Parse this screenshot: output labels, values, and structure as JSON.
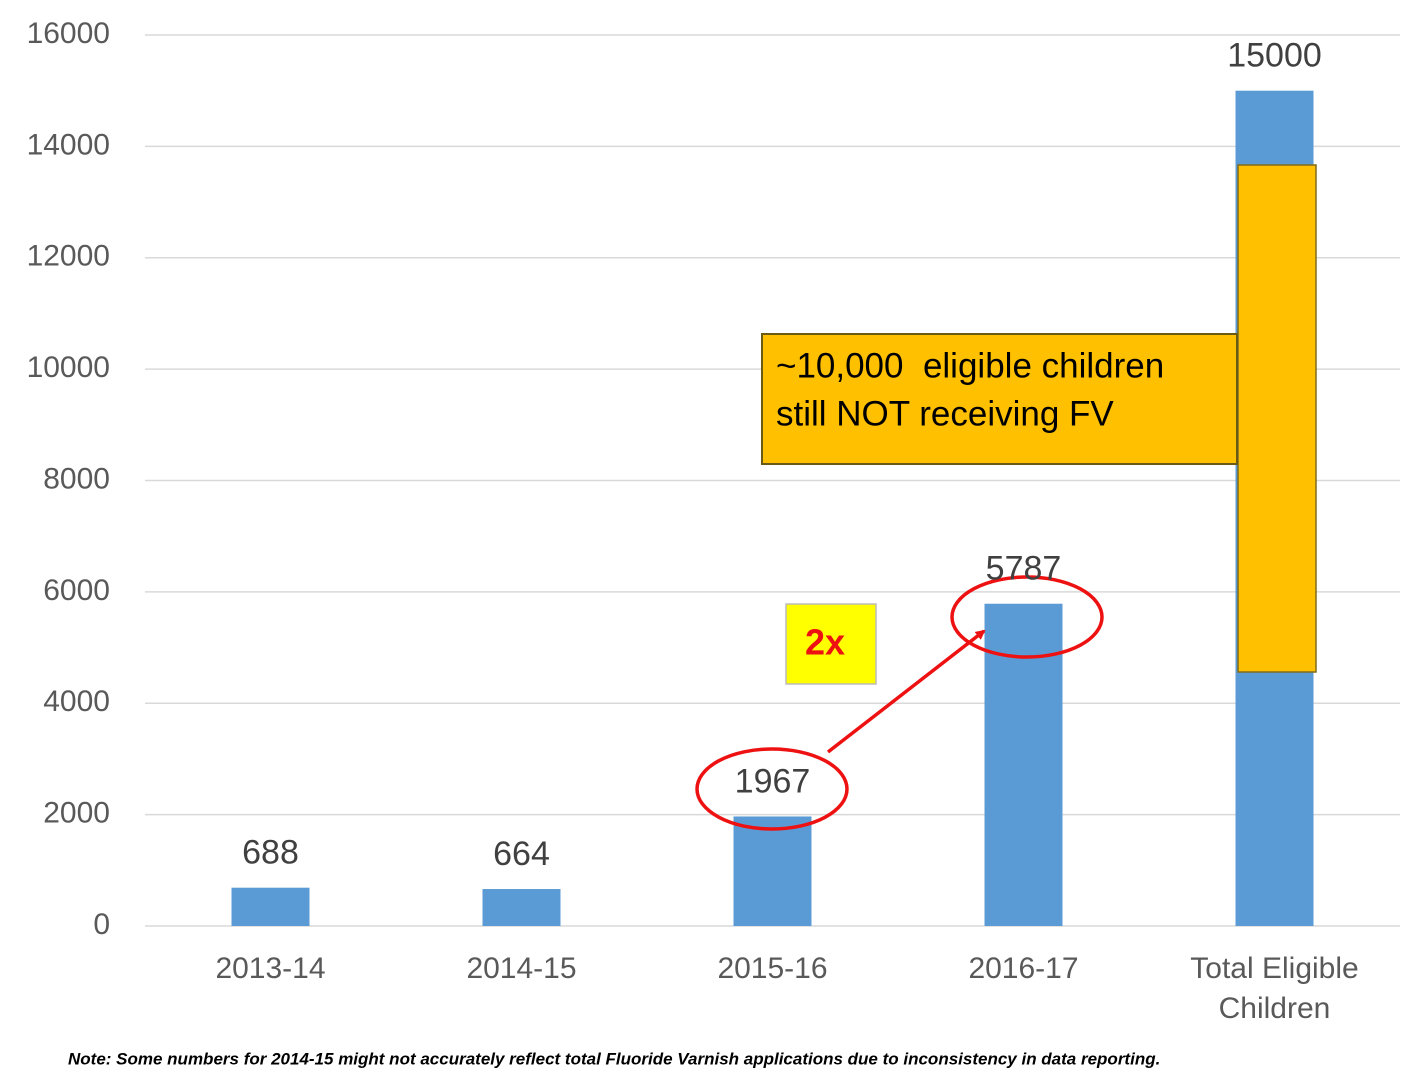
{
  "chart_data": {
    "type": "bar",
    "categories": [
      "2013-14",
      "2014-15",
      "2015-16",
      "2016-17",
      "Total Eligible Children"
    ],
    "values": [
      688,
      664,
      1967,
      5787,
      15000
    ],
    "color": "#5b9bd5",
    "ylim": [
      0,
      16000
    ],
    "yticks": [
      0,
      2000,
      4000,
      6000,
      8000,
      10000,
      12000,
      14000,
      16000
    ],
    "grid": true,
    "annotation_box": [
      "~10,000  eligible children",
      "still NOT receiving FV"
    ],
    "multiplier_label": "2x",
    "note": "Note: Some numbers for 2014-15 might not accurately reflect total Fluoride Varnish applications due to inconsistency in data reporting."
  }
}
